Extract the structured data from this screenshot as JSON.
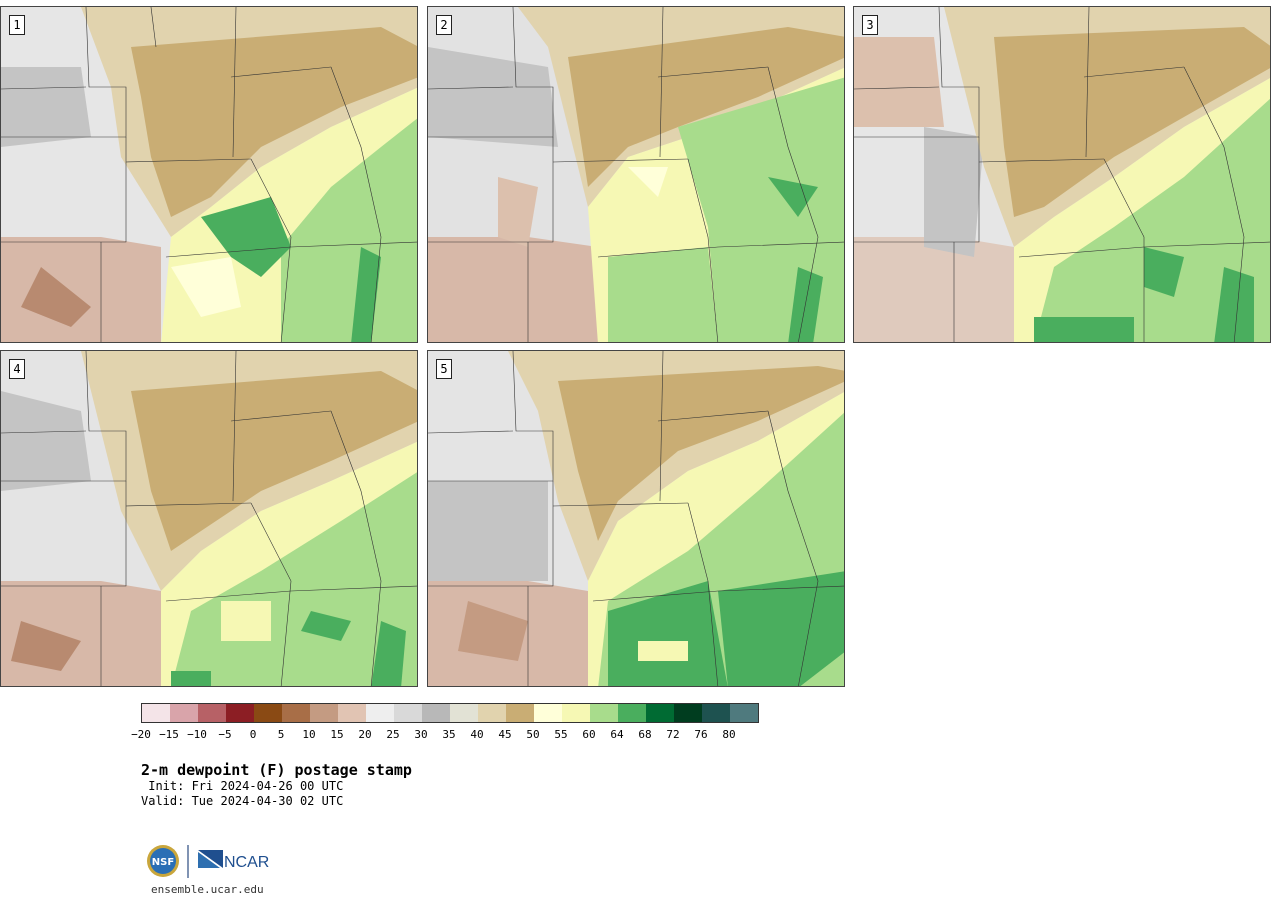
{
  "panels": [
    {
      "label": "1"
    },
    {
      "label": "2"
    },
    {
      "label": "3"
    },
    {
      "label": "4"
    },
    {
      "label": "5"
    }
  ],
  "colorbar": {
    "colors": [
      "#f4e4e8",
      "#d9a4aa",
      "#b76166",
      "#8c1e24",
      "#8a4a14",
      "#a86e47",
      "#c49b82",
      "#e1c4b3",
      "#eeeeee",
      "#d9d9d9",
      "#b8b8b8",
      "#e2e2d5",
      "#e1d3ae",
      "#c9ad74",
      "#ffffd9",
      "#f6f8b4",
      "#a8dc8c",
      "#4aae5e",
      "#006b33",
      "#003d1f",
      "#1e5250",
      "#4f7a7e"
    ],
    "ticks": [
      "−20",
      "−15",
      "−10",
      "−5",
      "0",
      "5",
      "10",
      "15",
      "20",
      "25",
      "30",
      "35",
      "40",
      "45",
      "50",
      "55",
      "60",
      "64",
      "68",
      "72",
      "76",
      "80"
    ]
  },
  "title": "2-m dewpoint (F) postage stamp",
  "init_line": " Init: Fri 2024-04-26 00 UTC",
  "valid_line": "Valid: Tue 2024-04-30 02 UTC",
  "logo": {
    "nsf_text": "NSF",
    "ncar_text": "NCAR"
  },
  "site": "ensemble.ucar.edu"
}
